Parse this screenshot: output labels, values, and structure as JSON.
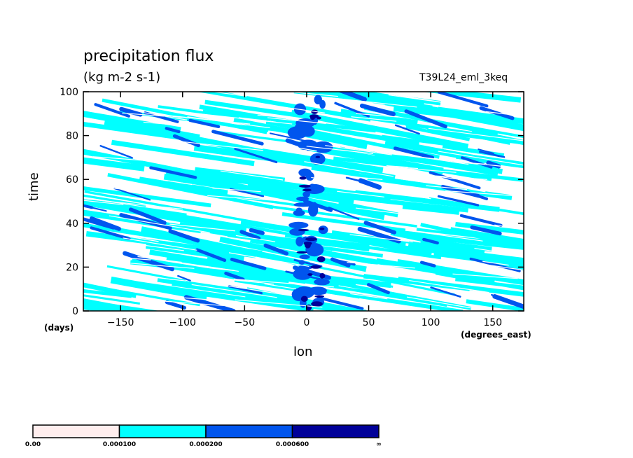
{
  "chart_data": {
    "type": "heatmap",
    "title": "precipitation flux",
    "units": "(kg m-2 s-1)",
    "run_label": "T39L24_eml_3keq",
    "xlabel": "lon",
    "xunit": "(degrees_east)",
    "ylabel": "time",
    "yunit": "(days)",
    "xlim": [
      -180,
      175
    ],
    "ylim": [
      0,
      100
    ],
    "xticks": [
      -150,
      -100,
      -50,
      0,
      50,
      100,
      150
    ],
    "yticks": [
      0,
      20,
      40,
      60,
      80,
      100
    ],
    "colorbar": {
      "levels": [
        "0.00",
        "0.000100",
        "0.000200",
        "0.000600",
        "∞"
      ],
      "colors": [
        "#ffeeee",
        "#00ffff",
        "#0055ee",
        "#000099"
      ]
    },
    "background_color": "#ffffff"
  }
}
